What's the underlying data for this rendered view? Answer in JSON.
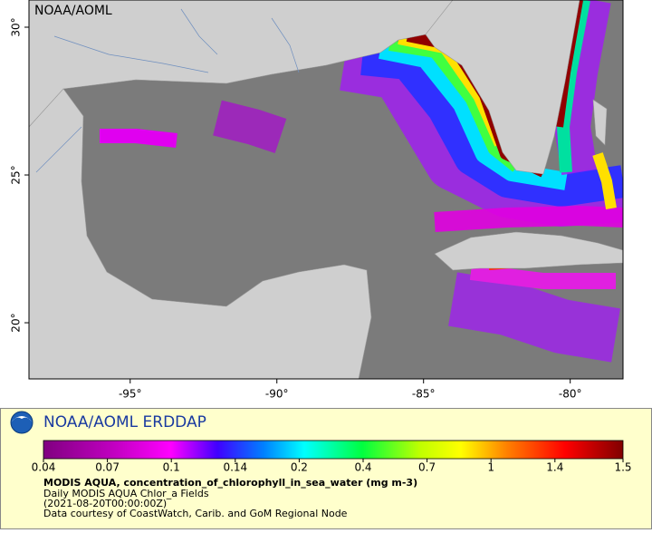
{
  "map": {
    "corner_label": "NOAA/AOML",
    "xlim": [
      -98.45,
      -78.2
    ],
    "ylim": [
      18.1,
      30.92
    ],
    "xticks": [
      {
        "value": -95,
        "label": "-95°"
      },
      {
        "value": -90,
        "label": "-90°"
      },
      {
        "value": -85,
        "label": "-85°"
      },
      {
        "value": -80,
        "label": "-80°"
      }
    ],
    "yticks": [
      {
        "value": 30,
        "label": "30°"
      },
      {
        "value": 25,
        "label": "25°"
      },
      {
        "value": 20,
        "label": "20°"
      }
    ]
  },
  "legend": {
    "title": "NOAA/AOML ERDDAP",
    "colorbar_ticks": [
      0.04,
      0.07,
      0.1,
      0.14,
      0.2,
      0.4,
      0.7,
      1,
      1.4,
      1.5
    ],
    "variable": "MODIS AQUA, concentration_of_chlorophyll_in_sea_water (mg m-3)",
    "dataset": "Daily MODIS AQUA Chlor_a Fields",
    "time": "(2021-08-20T00:00:00Z)",
    "credit": "Data courtesy of CoastWatch, Carib. and GoM Regional Node"
  }
}
